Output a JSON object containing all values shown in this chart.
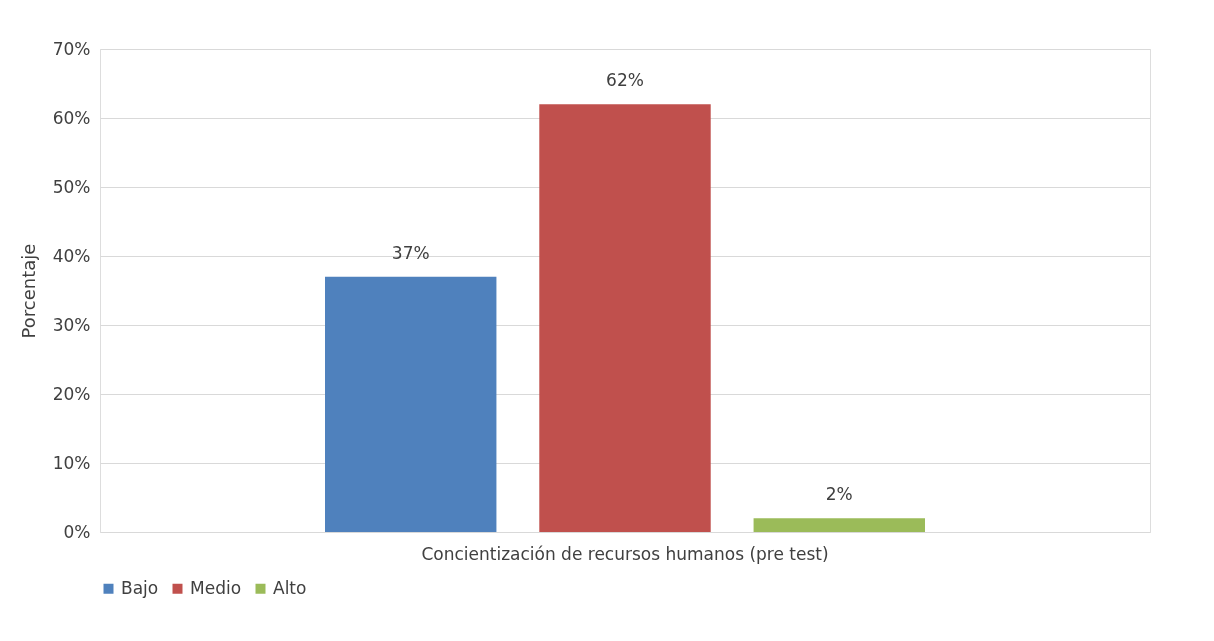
{
  "chart_data": {
    "type": "bar",
    "ylabel": "Porcentaje",
    "categories": [
      "Concientización de recursos humanos (pre test)"
    ],
    "series": [
      {
        "name": "Bajo",
        "color": "#4f81bd",
        "values": [
          37
        ],
        "value_labels": [
          "37%"
        ]
      },
      {
        "name": "Medio",
        "color": "#c0504d",
        "values": [
          62
        ],
        "value_labels": [
          "62%"
        ]
      },
      {
        "name": "Alto",
        "color": "#9bbb59",
        "values": [
          2
        ],
        "value_labels": [
          "2%"
        ]
      }
    ],
    "ylim": [
      0,
      70
    ],
    "yticks": [
      {
        "value": 0,
        "label": "0%"
      },
      {
        "value": 10,
        "label": "10%"
      },
      {
        "value": 20,
        "label": "20%"
      },
      {
        "value": 30,
        "label": "30%"
      },
      {
        "value": 40,
        "label": "40%"
      },
      {
        "value": 50,
        "label": "50%"
      },
      {
        "value": 60,
        "label": "60%"
      },
      {
        "value": 70,
        "label": "70%"
      }
    ],
    "grid": "y",
    "legend": "bottom"
  }
}
